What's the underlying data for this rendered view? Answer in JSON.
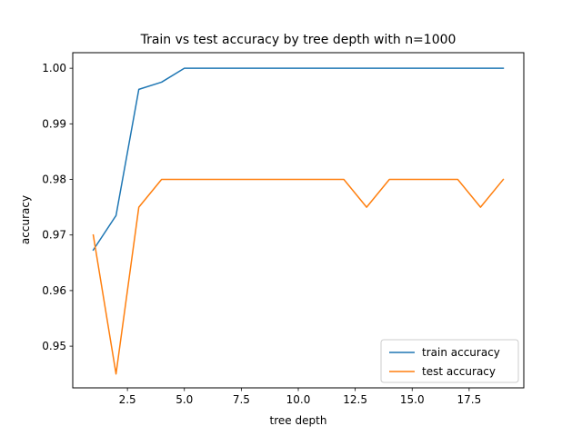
{
  "chart_data": {
    "type": "line",
    "title": "Train vs test accuracy by tree depth with n=1000",
    "xlabel": "tree depth",
    "ylabel": "accuracy",
    "xlim": [
      0.1,
      19.9
    ],
    "ylim": [
      0.9425,
      1.0028
    ],
    "xticks": [
      2.5,
      5.0,
      7.5,
      10.0,
      12.5,
      15.0,
      17.5
    ],
    "xtick_labels": [
      "2.5",
      "5.0",
      "7.5",
      "10.0",
      "12.5",
      "15.0",
      "17.5"
    ],
    "yticks": [
      0.95,
      0.96,
      0.97,
      0.98,
      0.99,
      1.0
    ],
    "ytick_labels": [
      "0.95",
      "0.96",
      "0.97",
      "0.98",
      "0.99",
      "1.00"
    ],
    "grid": false,
    "legend_position": "lower-right",
    "x": [
      1,
      2,
      3,
      4,
      5,
      6,
      7,
      8,
      9,
      10,
      11,
      12,
      13,
      14,
      15,
      16,
      17,
      18,
      19
    ],
    "series": [
      {
        "name": "train accuracy",
        "color": "#1f77b4",
        "values": [
          0.9673,
          0.9735,
          0.9962,
          0.9975,
          1.0,
          1.0,
          1.0,
          1.0,
          1.0,
          1.0,
          1.0,
          1.0,
          1.0,
          1.0,
          1.0,
          1.0,
          1.0,
          1.0,
          1.0
        ]
      },
      {
        "name": "test accuracy",
        "color": "#ff7f0e",
        "values": [
          0.97,
          0.945,
          0.975,
          0.98,
          0.98,
          0.98,
          0.98,
          0.98,
          0.98,
          0.98,
          0.98,
          0.98,
          0.975,
          0.98,
          0.98,
          0.98,
          0.98,
          0.975,
          0.98
        ]
      }
    ]
  }
}
